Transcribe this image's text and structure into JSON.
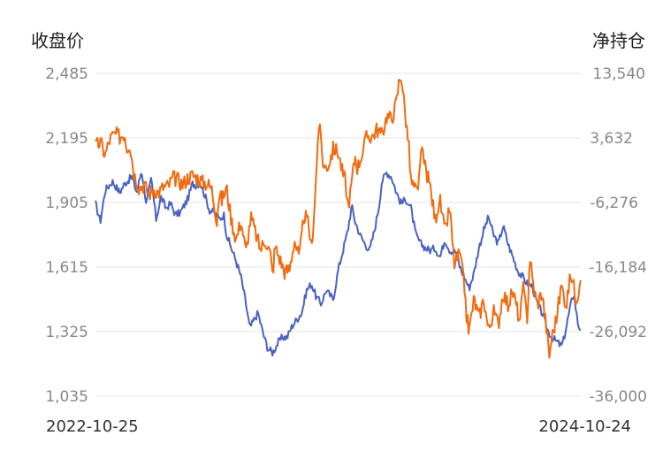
{
  "chart_data": {
    "type": "line",
    "left_axis_title": "收盘价",
    "right_axis_title": "净持仓",
    "left_ticks": [
      "2,485",
      "2,195",
      "1,905",
      "1,615",
      "1,325",
      "1,035"
    ],
    "right_ticks": [
      "13,540",
      "3,632",
      "-6,276",
      "-16,184",
      "-26,092",
      "-36,000"
    ],
    "left_range": [
      1035,
      2485
    ],
    "right_range": [
      -36000,
      13540
    ],
    "x_start_label": "2022-10-25",
    "x_end_label": "2024-10-24",
    "grid": true,
    "series": [
      {
        "axis": "left",
        "color": "#4a62c0",
        "anchors": [
          [
            0,
            1900
          ],
          [
            0.01,
            1820
          ],
          [
            0.02,
            1960
          ],
          [
            0.035,
            2000
          ],
          [
            0.05,
            1950
          ],
          [
            0.06,
            1990
          ],
          [
            0.075,
            2020
          ],
          [
            0.085,
            1950
          ],
          [
            0.095,
            2050
          ],
          [
            0.105,
            1900
          ],
          [
            0.115,
            2010
          ],
          [
            0.125,
            1830
          ],
          [
            0.135,
            1930
          ],
          [
            0.145,
            1880
          ],
          [
            0.155,
            1900
          ],
          [
            0.165,
            1850
          ],
          [
            0.175,
            1860
          ],
          [
            0.19,
            1920
          ],
          [
            0.2,
            1990
          ],
          [
            0.21,
            1980
          ],
          [
            0.215,
            2000
          ],
          [
            0.225,
            1940
          ],
          [
            0.235,
            1870
          ],
          [
            0.245,
            1860
          ],
          [
            0.255,
            1830
          ],
          [
            0.265,
            1850
          ],
          [
            0.27,
            1760
          ],
          [
            0.28,
            1700
          ],
          [
            0.29,
            1640
          ],
          [
            0.3,
            1570
          ],
          [
            0.31,
            1450
          ],
          [
            0.318,
            1340
          ],
          [
            0.325,
            1370
          ],
          [
            0.335,
            1410
          ],
          [
            0.345,
            1320
          ],
          [
            0.355,
            1250
          ],
          [
            0.365,
            1230
          ],
          [
            0.375,
            1270
          ],
          [
            0.385,
            1300
          ],
          [
            0.395,
            1300
          ],
          [
            0.405,
            1350
          ],
          [
            0.415,
            1380
          ],
          [
            0.425,
            1410
          ],
          [
            0.435,
            1510
          ],
          [
            0.445,
            1540
          ],
          [
            0.455,
            1480
          ],
          [
            0.465,
            1450
          ],
          [
            0.475,
            1510
          ],
          [
            0.49,
            1470
          ],
          [
            0.5,
            1600
          ],
          [
            0.51,
            1690
          ],
          [
            0.52,
            1780
          ],
          [
            0.528,
            1890
          ],
          [
            0.535,
            1820
          ],
          [
            0.545,
            1760
          ],
          [
            0.555,
            1720
          ],
          [
            0.565,
            1690
          ],
          [
            0.575,
            1780
          ],
          [
            0.585,
            1900
          ],
          [
            0.59,
            2000
          ],
          [
            0.6,
            2040
          ],
          [
            0.61,
            2020
          ],
          [
            0.62,
            1950
          ],
          [
            0.63,
            1900
          ],
          [
            0.64,
            1920
          ],
          [
            0.65,
            1880
          ],
          [
            0.66,
            1760
          ],
          [
            0.67,
            1720
          ],
          [
            0.68,
            1700
          ],
          [
            0.69,
            1690
          ],
          [
            0.7,
            1700
          ],
          [
            0.71,
            1660
          ],
          [
            0.72,
            1740
          ],
          [
            0.73,
            1690
          ],
          [
            0.745,
            1680
          ],
          [
            0.75,
            1620
          ],
          [
            0.76,
            1570
          ],
          [
            0.77,
            1520
          ],
          [
            0.78,
            1590
          ],
          [
            0.79,
            1700
          ],
          [
            0.8,
            1780
          ],
          [
            0.81,
            1840
          ],
          [
            0.82,
            1760
          ],
          [
            0.83,
            1720
          ],
          [
            0.84,
            1800
          ],
          [
            0.85,
            1720
          ],
          [
            0.86,
            1660
          ],
          [
            0.87,
            1600
          ],
          [
            0.88,
            1570
          ],
          [
            0.89,
            1540
          ],
          [
            0.9,
            1530
          ],
          [
            0.91,
            1450
          ],
          [
            0.92,
            1410
          ],
          [
            0.93,
            1340
          ],
          [
            0.94,
            1300
          ],
          [
            0.95,
            1280
          ],
          [
            0.96,
            1260
          ],
          [
            0.965,
            1290
          ],
          [
            0.975,
            1400
          ],
          [
            0.985,
            1500
          ],
          [
            0.995,
            1350
          ],
          [
            1,
            1340
          ]
        ]
      },
      {
        "axis": "right",
        "color": "#f26b0f",
        "anchors": [
          [
            0,
            2200
          ],
          [
            0.01,
            3000
          ],
          [
            0.02,
            1000
          ],
          [
            0.03,
            3500
          ],
          [
            0.04,
            4200
          ],
          [
            0.05,
            3800
          ],
          [
            0.06,
            4300
          ],
          [
            0.065,
            2000
          ],
          [
            0.07,
            3000
          ],
          [
            0.08,
            -2000
          ],
          [
            0.09,
            -4000
          ],
          [
            0.1,
            -3500
          ],
          [
            0.11,
            -5000
          ],
          [
            0.12,
            -4200
          ],
          [
            0.13,
            -4800
          ],
          [
            0.14,
            -3900
          ],
          [
            0.15,
            -3800
          ],
          [
            0.16,
            -2500
          ],
          [
            0.17,
            -2800
          ],
          [
            0.18,
            -3500
          ],
          [
            0.19,
            -2500
          ],
          [
            0.2,
            -2100
          ],
          [
            0.21,
            -2500
          ],
          [
            0.22,
            -3200
          ],
          [
            0.23,
            -3300
          ],
          [
            0.24,
            -4300
          ],
          [
            0.25,
            -9000
          ],
          [
            0.255,
            -5000
          ],
          [
            0.26,
            -6000
          ],
          [
            0.27,
            -4000
          ],
          [
            0.28,
            -9000
          ],
          [
            0.29,
            -12000
          ],
          [
            0.3,
            -9000
          ],
          [
            0.31,
            -14000
          ],
          [
            0.32,
            -8500
          ],
          [
            0.33,
            -11000
          ],
          [
            0.34,
            -13500
          ],
          [
            0.35,
            -12000
          ],
          [
            0.36,
            -14000
          ],
          [
            0.365,
            -17500
          ],
          [
            0.37,
            -13000
          ],
          [
            0.38,
            -15000
          ],
          [
            0.39,
            -17000
          ],
          [
            0.4,
            -16500
          ],
          [
            0.41,
            -12000
          ],
          [
            0.42,
            -15000
          ],
          [
            0.43,
            -8000
          ],
          [
            0.44,
            -10000
          ],
          [
            0.445,
            -14000
          ],
          [
            0.455,
            -2000
          ],
          [
            0.46,
            6000
          ],
          [
            0.465,
            3000
          ],
          [
            0.47,
            -1000
          ],
          [
            0.48,
            -500
          ],
          [
            0.49,
            2000
          ],
          [
            0.5,
            1500
          ],
          [
            0.51,
            -2000
          ],
          [
            0.515,
            -3000
          ],
          [
            0.52,
            -7000
          ],
          [
            0.525,
            -5000
          ],
          [
            0.53,
            -2000
          ],
          [
            0.535,
            1000
          ],
          [
            0.54,
            -1000
          ],
          [
            0.55,
            1500
          ],
          [
            0.56,
            4000
          ],
          [
            0.57,
            3800
          ],
          [
            0.58,
            5000
          ],
          [
            0.59,
            4000
          ],
          [
            0.6,
            7000
          ],
          [
            0.61,
            6500
          ],
          [
            0.62,
            9000
          ],
          [
            0.625,
            12000
          ],
          [
            0.63,
            13500
          ],
          [
            0.64,
            6000
          ],
          [
            0.645,
            3000
          ],
          [
            0.65,
            -3000
          ],
          [
            0.66,
            -4500
          ],
          [
            0.665,
            -5000
          ],
          [
            0.67,
            2000
          ],
          [
            0.68,
            -1000
          ],
          [
            0.69,
            -4000
          ],
          [
            0.7,
            -9000
          ],
          [
            0.705,
            -7000
          ],
          [
            0.71,
            -6000
          ],
          [
            0.72,
            -11000
          ],
          [
            0.73,
            -7000
          ],
          [
            0.735,
            -12000
          ],
          [
            0.74,
            -16000
          ],
          [
            0.75,
            -14000
          ],
          [
            0.76,
            -19000
          ],
          [
            0.765,
            -24000
          ],
          [
            0.77,
            -26000
          ],
          [
            0.78,
            -21000
          ],
          [
            0.79,
            -24000
          ],
          [
            0.8,
            -21000
          ],
          [
            0.81,
            -26000
          ],
          [
            0.82,
            -23000
          ],
          [
            0.83,
            -25000
          ],
          [
            0.84,
            -20000
          ],
          [
            0.85,
            -22000
          ],
          [
            0.86,
            -20000
          ],
          [
            0.87,
            -23000
          ],
          [
            0.875,
            -25000
          ],
          [
            0.88,
            -19000
          ],
          [
            0.89,
            -24000
          ],
          [
            0.895,
            -14000
          ],
          [
            0.9,
            -18000
          ],
          [
            0.91,
            -22000
          ],
          [
            0.92,
            -20000
          ],
          [
            0.93,
            -26000
          ],
          [
            0.935,
            -30000
          ],
          [
            0.94,
            -27000
          ],
          [
            0.95,
            -24000
          ],
          [
            0.96,
            -19000
          ],
          [
            0.97,
            -22000
          ],
          [
            0.98,
            -17000
          ],
          [
            0.99,
            -21000
          ],
          [
            0.995,
            -20000
          ],
          [
            1,
            -17000
          ]
        ]
      }
    ]
  }
}
